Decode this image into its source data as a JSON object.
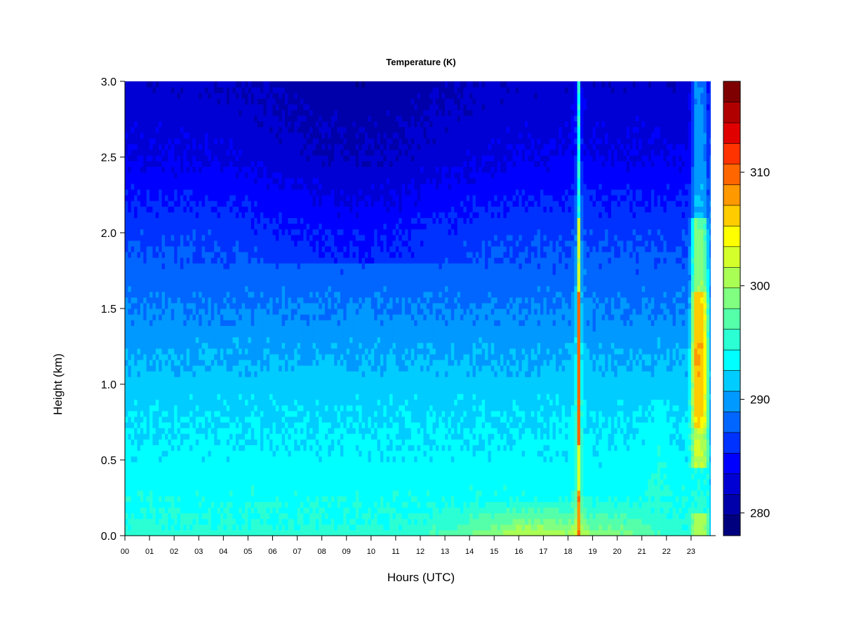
{
  "chart_data": {
    "type": "heatmap",
    "title": "Temperature (K)",
    "xlabel": "Hours (UTC)",
    "ylabel": "Height (km)",
    "xlim": [
      0,
      24
    ],
    "ylim": [
      0.0,
      3.0
    ],
    "x_ticks": [
      "00",
      "01",
      "02",
      "03",
      "04",
      "05",
      "06",
      "07",
      "08",
      "09",
      "10",
      "11",
      "12",
      "13",
      "14",
      "15",
      "16",
      "17",
      "18",
      "19",
      "20",
      "21",
      "22",
      "23"
    ],
    "y_ticks": [
      "0.0",
      "0.5",
      "1.0",
      "1.5",
      "2.0",
      "2.5",
      "3.0"
    ],
    "colorbar": {
      "min": 278,
      "max": 318,
      "step": 2,
      "ticks": [
        "280",
        "290",
        "300",
        "310"
      ],
      "colors": [
        "#00007F",
        "#0000AA",
        "#0000D4",
        "#0000FF",
        "#0032FF",
        "#0066FF",
        "#0099FF",
        "#00CCFF",
        "#00FFFF",
        "#2BFFD4",
        "#55FFAA",
        "#80FF80",
        "#AAFF55",
        "#D4FF2B",
        "#FFFF00",
        "#FFCC00",
        "#FF9900",
        "#FF6600",
        "#FF3300",
        "#E00000",
        "#B00000",
        "#7F0000"
      ]
    },
    "features": [
      {
        "description": "cold layer aloft",
        "height_range": [
          2.0,
          3.0
        ],
        "value_K": 281
      },
      {
        "description": "surface warm layer",
        "x_range": [
          13,
          22
        ],
        "height_range": [
          0.0,
          0.2
        ],
        "value_K": 304
      },
      {
        "description": "narrow warm column",
        "x": 18.4,
        "height_range": [
          0.0,
          3.0
        ],
        "value_K": 314
      },
      {
        "description": "warm column",
        "x_range": [
          22.9,
          23.8
        ],
        "height_range": [
          0.4,
          2.0
        ],
        "value_K": 310
      }
    ]
  }
}
